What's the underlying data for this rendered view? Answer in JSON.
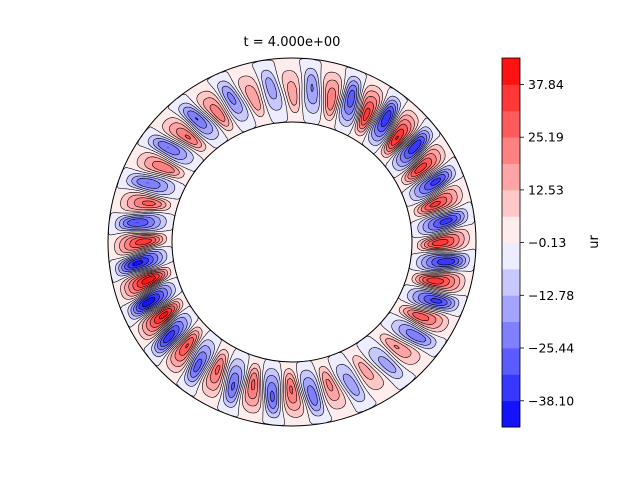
{
  "chart_data": {
    "type": "heatmap",
    "title": "t = 4.000e+00",
    "colorbar": {
      "label": "ur",
      "range": [
        -44.4,
        44.2
      ],
      "levels": 14,
      "tick_labels": [
        "37.84",
        "25.19",
        "12.53",
        "−0.13",
        "−12.78",
        "−25.44",
        "−38.10"
      ],
      "tick_values": [
        37.84,
        25.19,
        12.53,
        -0.13,
        -12.78,
        -25.44,
        -38.1
      ],
      "colormap": "bwr"
    },
    "domain": {
      "shape": "annulus",
      "inner_radius_ratio": 0.65
    },
    "pattern": {
      "azimuthal_wavenumber": 24,
      "radial_mode": 1,
      "peak_amplitude": 44
    }
  }
}
